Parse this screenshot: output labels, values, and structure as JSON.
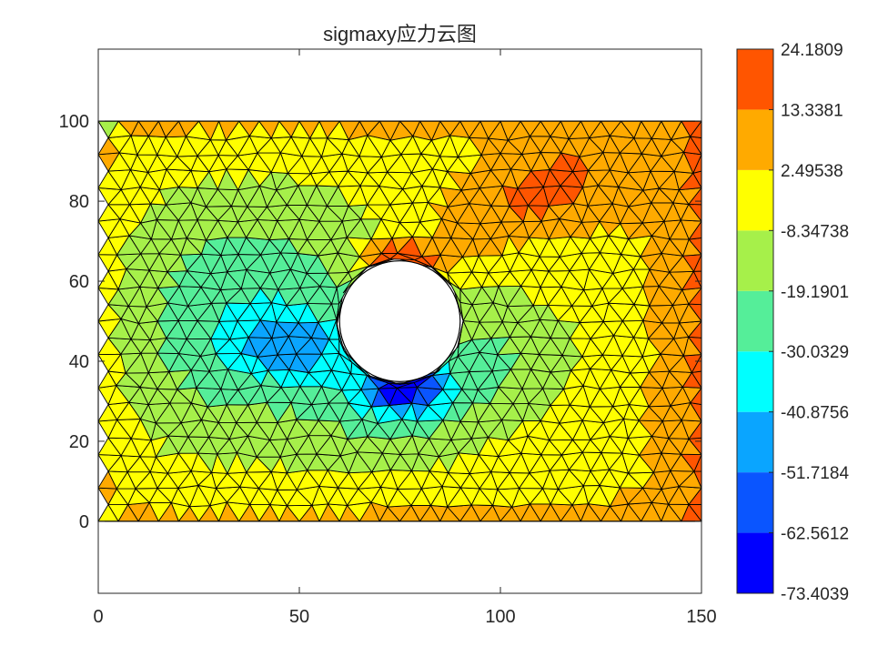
{
  "chart_data": {
    "type": "heatmap",
    "title": "sigmaxy应力云图",
    "xlabel": "",
    "ylabel": "",
    "xlim": [
      0,
      150
    ],
    "ylim": [
      -18,
      118
    ],
    "x_ticks": [
      "0",
      "50",
      "100",
      "150"
    ],
    "y_ticks": [
      "0",
      "20",
      "40",
      "60",
      "80",
      "100"
    ],
    "domain": {
      "width": 150,
      "height": 100,
      "hole_center": [
        75,
        50
      ],
      "hole_radius": 15
    },
    "colorbar": {
      "placement": "right",
      "levels": [
        -73.4039,
        -62.5612,
        -51.7184,
        -40.8756,
        -30.0329,
        -19.1901,
        -8.34738,
        2.49538,
        13.3381,
        24.1809
      ],
      "level_labels": [
        "-73.4039",
        "-62.5612",
        "-51.7184",
        "-40.8756",
        "-30.0329",
        "-19.1901",
        "-8.34738",
        "2.49538",
        "13.3381",
        "24.1809"
      ],
      "band_colors": [
        "#0000ff",
        "#0a55ff",
        "#0aa5ff",
        "#00ffff",
        "#55ee99",
        "#a6f04a",
        "#ffff00",
        "#ffaa00",
        "#ff5500"
      ]
    },
    "field_features": [
      {
        "kind": "peak",
        "location": [
          75,
          66
        ],
        "value": 24.1809
      },
      {
        "kind": "trough",
        "location": [
          76,
          35
        ],
        "value": -73.4039
      },
      {
        "kind": "low",
        "location": [
          50,
          45
        ],
        "value": -60.0
      },
      {
        "kind": "high",
        "location": [
          110,
          78
        ],
        "value": 8.0
      }
    ],
    "grid": false
  }
}
